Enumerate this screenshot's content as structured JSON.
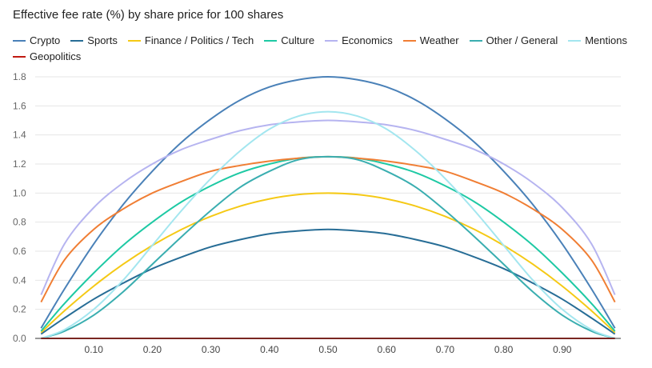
{
  "chart_data": {
    "type": "line",
    "title": "Effective fee rate (%) by share price for 100 shares",
    "xlabel": "",
    "ylabel": "",
    "xlim": [
      0,
      1
    ],
    "ylim": [
      0,
      1.8
    ],
    "x_ticks": [
      "0.10",
      "0.20",
      "0.30",
      "0.40",
      "0.50",
      "0.60",
      "0.70",
      "0.80",
      "0.90"
    ],
    "y_ticks": [
      "0.0",
      "0.2",
      "0.4",
      "0.6",
      "0.8",
      "1.0",
      "1.2",
      "1.4",
      "1.6",
      "1.8"
    ],
    "grid": true,
    "legend_position": "top",
    "x": [
      0.01,
      0.05,
      0.1,
      0.15,
      0.2,
      0.25,
      0.3,
      0.35,
      0.4,
      0.45,
      0.5,
      0.55,
      0.6,
      0.65,
      0.7,
      0.75,
      0.8,
      0.85,
      0.9,
      0.95,
      0.99
    ],
    "series": [
      {
        "name": "Crypto",
        "color": "#4a81b8",
        "values": [
          0.07,
          0.34,
          0.65,
          0.92,
          1.15,
          1.35,
          1.51,
          1.64,
          1.73,
          1.78,
          1.8,
          1.78,
          1.73,
          1.64,
          1.51,
          1.35,
          1.15,
          0.92,
          0.65,
          0.34,
          0.07
        ]
      },
      {
        "name": "Sports",
        "color": "#276d96",
        "values": [
          0.03,
          0.14,
          0.27,
          0.38,
          0.48,
          0.56,
          0.63,
          0.68,
          0.72,
          0.74,
          0.75,
          0.74,
          0.72,
          0.68,
          0.63,
          0.56,
          0.48,
          0.38,
          0.27,
          0.14,
          0.03
        ]
      },
      {
        "name": "Finance / Politics / Tech",
        "color": "#f5c915",
        "values": [
          0.04,
          0.19,
          0.36,
          0.51,
          0.64,
          0.75,
          0.84,
          0.91,
          0.96,
          0.99,
          1.0,
          0.99,
          0.96,
          0.91,
          0.84,
          0.75,
          0.64,
          0.51,
          0.36,
          0.19,
          0.04
        ]
      },
      {
        "name": "Culture",
        "color": "#1ec9a4",
        "values": [
          0.05,
          0.24,
          0.45,
          0.64,
          0.8,
          0.94,
          1.05,
          1.14,
          1.2,
          1.24,
          1.25,
          1.24,
          1.2,
          1.14,
          1.05,
          0.94,
          0.8,
          0.64,
          0.45,
          0.24,
          0.05
        ]
      },
      {
        "name": "Economics",
        "color": "#b6b4f0",
        "values": [
          0.3,
          0.65,
          0.9,
          1.07,
          1.2,
          1.3,
          1.37,
          1.43,
          1.47,
          1.49,
          1.5,
          1.49,
          1.47,
          1.43,
          1.37,
          1.3,
          1.2,
          1.07,
          0.9,
          0.65,
          0.3
        ]
      },
      {
        "name": "Weather",
        "color": "#f07e34",
        "values": [
          0.25,
          0.54,
          0.75,
          0.89,
          1.0,
          1.08,
          1.15,
          1.19,
          1.22,
          1.24,
          1.25,
          1.24,
          1.22,
          1.19,
          1.15,
          1.08,
          1.0,
          0.89,
          0.75,
          0.54,
          0.25
        ]
      },
      {
        "name": "Other / General",
        "color": "#3aaeb0",
        "values": [
          0.0,
          0.05,
          0.16,
          0.32,
          0.51,
          0.7,
          0.88,
          1.04,
          1.15,
          1.23,
          1.25,
          1.23,
          1.15,
          1.04,
          0.88,
          0.7,
          0.51,
          0.32,
          0.16,
          0.05,
          0.0
        ]
      },
      {
        "name": "Mentions",
        "color": "#a3e6ef",
        "values": [
          0.0,
          0.06,
          0.2,
          0.4,
          0.64,
          0.88,
          1.1,
          1.29,
          1.44,
          1.53,
          1.56,
          1.53,
          1.44,
          1.29,
          1.1,
          0.88,
          0.64,
          0.4,
          0.2,
          0.06,
          0.0
        ]
      },
      {
        "name": "Geopolitics",
        "color": "#c01a12",
        "values": [
          0.0,
          0.0,
          0.0,
          0.0,
          0.0,
          0.0,
          0.0,
          0.0,
          0.0,
          0.0,
          0.0,
          0.0,
          0.0,
          0.0,
          0.0,
          0.0,
          0.0,
          0.0,
          0.0,
          0.0,
          0.0
        ]
      }
    ]
  }
}
